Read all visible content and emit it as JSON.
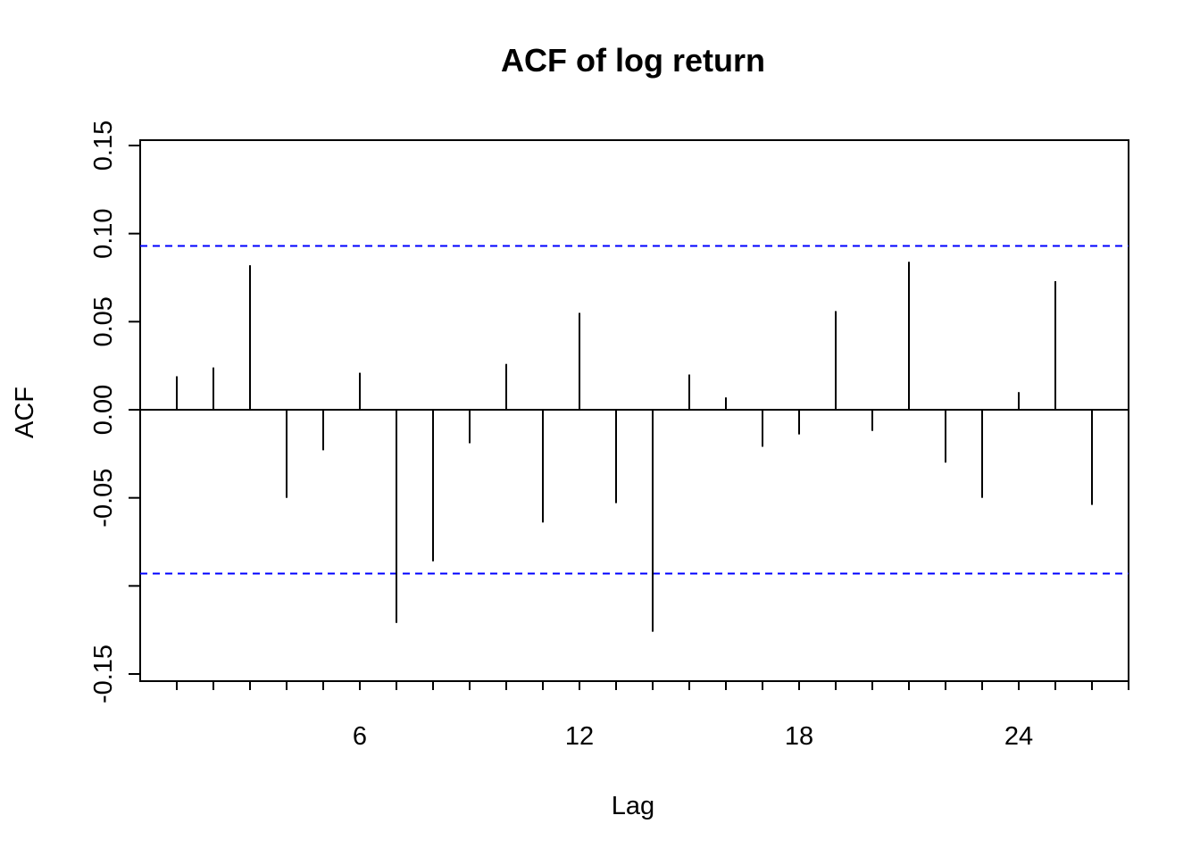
{
  "chart_data": {
    "type": "bar",
    "title": "ACF of log return",
    "xlabel": "Lag",
    "ylabel": "ACF",
    "x": [
      1,
      2,
      3,
      4,
      5,
      6,
      7,
      8,
      9,
      10,
      11,
      12,
      13,
      14,
      15,
      16,
      17,
      18,
      19,
      20,
      21,
      22,
      23,
      24,
      25,
      26
    ],
    "values": [
      0.019,
      0.024,
      0.082,
      -0.05,
      -0.023,
      0.021,
      -0.121,
      -0.086,
      -0.019,
      0.026,
      -0.064,
      0.055,
      -0.053,
      -0.126,
      0.02,
      0.007,
      -0.021,
      -0.014,
      0.056,
      -0.012,
      0.084,
      -0.03,
      -0.05,
      0.01,
      0.073,
      -0.054
    ],
    "ci_bounds": [
      0.093,
      -0.093
    ],
    "xlim": [
      0,
      27
    ],
    "ylim": [
      -0.15,
      0.15
    ],
    "x_ticks": [
      {
        "value": 1,
        "label": ""
      },
      {
        "value": 2,
        "label": ""
      },
      {
        "value": 3,
        "label": ""
      },
      {
        "value": 4,
        "label": ""
      },
      {
        "value": 5,
        "label": ""
      },
      {
        "value": 6,
        "label": "6"
      },
      {
        "value": 7,
        "label": ""
      },
      {
        "value": 8,
        "label": ""
      },
      {
        "value": 9,
        "label": ""
      },
      {
        "value": 10,
        "label": ""
      },
      {
        "value": 11,
        "label": ""
      },
      {
        "value": 12,
        "label": "12"
      },
      {
        "value": 13,
        "label": ""
      },
      {
        "value": 14,
        "label": ""
      },
      {
        "value": 15,
        "label": ""
      },
      {
        "value": 16,
        "label": ""
      },
      {
        "value": 17,
        "label": ""
      },
      {
        "value": 18,
        "label": "18"
      },
      {
        "value": 19,
        "label": ""
      },
      {
        "value": 20,
        "label": ""
      },
      {
        "value": 21,
        "label": ""
      },
      {
        "value": 22,
        "label": ""
      },
      {
        "value": 23,
        "label": ""
      },
      {
        "value": 24,
        "label": "24"
      },
      {
        "value": 25,
        "label": ""
      },
      {
        "value": 26,
        "label": ""
      },
      {
        "value": 27,
        "label": ""
      }
    ],
    "y_ticks": [
      {
        "value": -0.15,
        "label": "-0.15"
      },
      {
        "value": -0.1,
        "label": ""
      },
      {
        "value": -0.05,
        "label": "-0.05"
      },
      {
        "value": 0.0,
        "label": "0.00"
      },
      {
        "value": 0.05,
        "label": "0.05"
      },
      {
        "value": 0.1,
        "label": "0.10"
      },
      {
        "value": 0.15,
        "label": "0.15"
      }
    ],
    "grid": false,
    "colors": {
      "bars": "#000000",
      "ci": "#0000ff",
      "zero_line": "#000000"
    }
  }
}
